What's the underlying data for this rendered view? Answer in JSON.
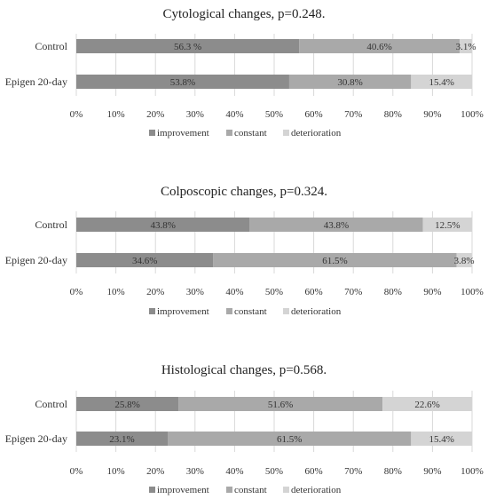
{
  "chart_data": [
    {
      "type": "bar",
      "orientation": "horizontal",
      "stacked": true,
      "title": "Cytological changes, p=0.248.",
      "categories": [
        "Control",
        "Epigen 20-day"
      ],
      "series": [
        {
          "name": "improvement",
          "values": [
            56.3,
            53.8
          ],
          "labels": [
            "56.3 %",
            "53.8%"
          ]
        },
        {
          "name": "constant",
          "values": [
            40.6,
            30.8
          ],
          "labels": [
            "40.6%",
            "30.8%"
          ]
        },
        {
          "name": "deterioration",
          "values": [
            3.1,
            15.4
          ],
          "labels": [
            "3.1%",
            "15.4%"
          ]
        }
      ],
      "xlim": [
        0,
        100
      ],
      "xticks": [
        "0%",
        "10%",
        "20%",
        "30%",
        "40%",
        "50%",
        "60%",
        "70%",
        "80%",
        "90%",
        "100%"
      ],
      "grid": true,
      "legend": "bottom"
    },
    {
      "type": "bar",
      "orientation": "horizontal",
      "stacked": true,
      "title": "Colposcopic changes, p=0.324.",
      "categories": [
        "Control",
        "Epigen 20-day"
      ],
      "series": [
        {
          "name": "improvement",
          "values": [
            43.8,
            34.6
          ],
          "labels": [
            "43.8%",
            "34.6%"
          ]
        },
        {
          "name": "constant",
          "values": [
            43.8,
            61.5
          ],
          "labels": [
            "43.8%",
            "61.5%"
          ]
        },
        {
          "name": "deterioration",
          "values": [
            12.5,
            3.8
          ],
          "labels": [
            "12.5%",
            "3.8%"
          ]
        }
      ],
      "xlim": [
        0,
        100
      ],
      "xticks": [
        "0%",
        "10%",
        "20%",
        "30%",
        "40%",
        "50%",
        "60%",
        "70%",
        "80%",
        "90%",
        "100%"
      ],
      "grid": true,
      "legend": "bottom"
    },
    {
      "type": "bar",
      "orientation": "horizontal",
      "stacked": true,
      "title": "Histological changes, p=0.568.",
      "categories": [
        "Control",
        "Epigen 20-day"
      ],
      "series": [
        {
          "name": "improvement",
          "values": [
            25.8,
            23.1
          ],
          "labels": [
            "25.8%",
            "23.1%"
          ]
        },
        {
          "name": "constant",
          "values": [
            51.6,
            61.5
          ],
          "labels": [
            "51.6%",
            "61.5%"
          ]
        },
        {
          "name": "deterioration",
          "values": [
            22.6,
            15.4
          ],
          "labels": [
            "22.6%",
            "15.4%"
          ]
        }
      ],
      "xlim": [
        0,
        100
      ],
      "xticks": [
        "0%",
        "10%",
        "20%",
        "30%",
        "40%",
        "50%",
        "60%",
        "70%",
        "80%",
        "90%",
        "100%"
      ],
      "grid": true,
      "legend": "bottom"
    }
  ],
  "colors": {
    "improvement": "#8c8c8c",
    "constant": "#a9a9a9",
    "deterioration": "#d4d4d4",
    "grid": "#d9d9d9"
  }
}
